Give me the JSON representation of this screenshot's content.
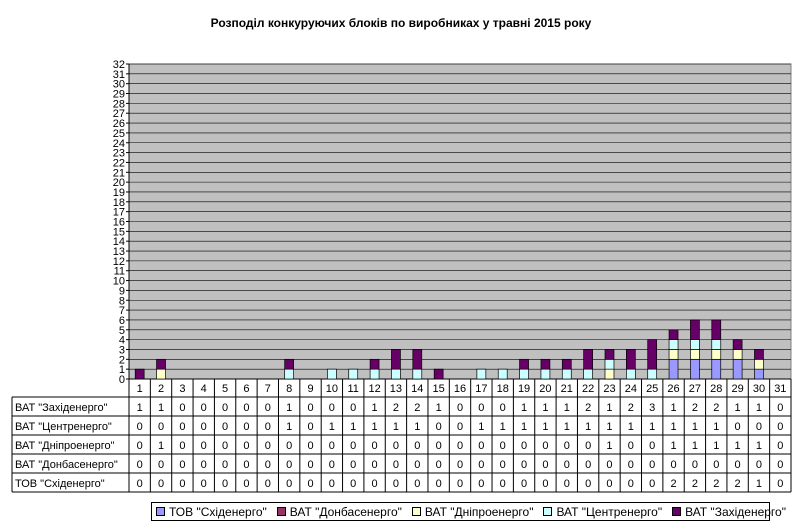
{
  "chart_data": {
    "type": "bar",
    "stacked": true,
    "title": "Розподіл конкуруючих блоків по виробниках у травні 2015 року",
    "categories": [
      "1",
      "2",
      "3",
      "4",
      "5",
      "6",
      "7",
      "8",
      "9",
      "10",
      "11",
      "12",
      "13",
      "14",
      "15",
      "16",
      "17",
      "18",
      "19",
      "20",
      "21",
      "22",
      "23",
      "24",
      "25",
      "26",
      "27",
      "28",
      "29",
      "30",
      "31"
    ],
    "y_ticks": [
      "0",
      "1",
      "2",
      "3",
      "4",
      "5",
      "6",
      "7",
      "8",
      "9",
      "10",
      "11",
      "12",
      "13",
      "14",
      "15",
      "16",
      "17",
      "18",
      "19",
      "20",
      "21",
      "22",
      "23",
      "24",
      "25",
      "26",
      "27",
      "28",
      "29",
      "30",
      "31",
      "32"
    ],
    "ylim": [
      0,
      32
    ],
    "grid": true,
    "legend_position": "bottom",
    "plot_background": "#c0c0c0",
    "series": [
      {
        "name": "ТОВ \"Східенерго\"",
        "color": "#9999ff",
        "values": [
          0,
          0,
          0,
          0,
          0,
          0,
          0,
          0,
          0,
          0,
          0,
          0,
          0,
          0,
          0,
          0,
          0,
          0,
          0,
          0,
          0,
          0,
          0,
          0,
          0,
          2,
          2,
          2,
          2,
          1,
          0
        ]
      },
      {
        "name": "ВАТ \"Донбасенерго\"",
        "color": "#993366",
        "values": [
          0,
          0,
          0,
          0,
          0,
          0,
          0,
          0,
          0,
          0,
          0,
          0,
          0,
          0,
          0,
          0,
          0,
          0,
          0,
          0,
          0,
          0,
          0,
          0,
          0,
          0,
          0,
          0,
          0,
          0,
          0
        ]
      },
      {
        "name": "ВАТ \"Дніпроенерго\"",
        "color": "#ffffcc",
        "values": [
          0,
          1,
          0,
          0,
          0,
          0,
          0,
          0,
          0,
          0,
          0,
          0,
          0,
          0,
          0,
          0,
          0,
          0,
          0,
          0,
          0,
          0,
          1,
          0,
          0,
          1,
          1,
          1,
          1,
          1,
          0
        ]
      },
      {
        "name": "ВАТ \"Центренерго\"",
        "color": "#ccffff",
        "values": [
          0,
          0,
          0,
          0,
          0,
          0,
          0,
          1,
          0,
          1,
          1,
          1,
          1,
          1,
          0,
          0,
          1,
          1,
          1,
          1,
          1,
          1,
          1,
          1,
          1,
          1,
          1,
          1,
          0,
          0,
          0
        ]
      },
      {
        "name": "ВАТ \"Західенерго\"",
        "color": "#660066",
        "values": [
          1,
          1,
          0,
          0,
          0,
          0,
          0,
          1,
          0,
          0,
          0,
          1,
          2,
          2,
          1,
          0,
          0,
          0,
          1,
          1,
          1,
          2,
          1,
          2,
          3,
          1,
          2,
          2,
          1,
          1,
          0
        ]
      }
    ],
    "table_rows": [
      {
        "name": "ВАТ \"Західенерго\"",
        "series_index": 4
      },
      {
        "name": "ВАТ \"Центренерго\"",
        "series_index": 3
      },
      {
        "name": "ВАТ \"Дніпроенерго\"",
        "series_index": 2
      },
      {
        "name": "ВАТ \"Донбасенерго\"",
        "series_index": 1
      },
      {
        "name": "ТОВ \"Східенерго\"",
        "series_index": 0
      }
    ],
    "legend_order": [
      0,
      1,
      2,
      3,
      4
    ]
  }
}
